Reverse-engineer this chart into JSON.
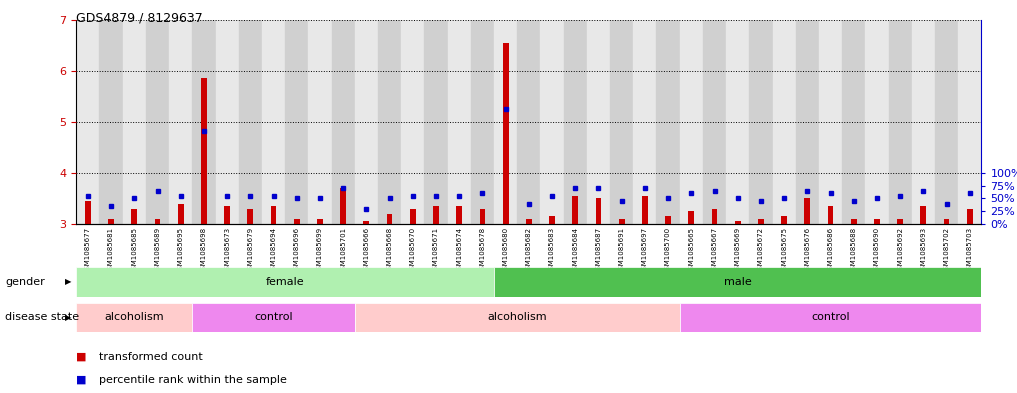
{
  "title": "GDS4879 / 8129637",
  "samples": [
    "GSM1085677",
    "GSM1085681",
    "GSM1085685",
    "GSM1085689",
    "GSM1085695",
    "GSM1085698",
    "GSM1085673",
    "GSM1085679",
    "GSM1085694",
    "GSM1085696",
    "GSM1085699",
    "GSM1085701",
    "GSM1085666",
    "GSM1085668",
    "GSM1085670",
    "GSM1085671",
    "GSM1085674",
    "GSM1085678",
    "GSM1085680",
    "GSM1085682",
    "GSM1085683",
    "GSM1085684",
    "GSM1085687",
    "GSM1085691",
    "GSM1085697",
    "GSM1085700",
    "GSM1085665",
    "GSM1085667",
    "GSM1085669",
    "GSM1085672",
    "GSM1085675",
    "GSM1085676",
    "GSM1085686",
    "GSM1085688",
    "GSM1085690",
    "GSM1085692",
    "GSM1085693",
    "GSM1085702",
    "GSM1085703"
  ],
  "red_values": [
    3.45,
    3.1,
    3.3,
    3.1,
    3.4,
    5.85,
    3.35,
    3.3,
    3.35,
    3.1,
    3.1,
    3.7,
    3.05,
    3.2,
    3.3,
    3.35,
    3.35,
    3.3,
    6.55,
    3.1,
    3.15,
    3.55,
    3.5,
    3.1,
    3.55,
    3.15,
    3.25,
    3.3,
    3.05,
    3.1,
    3.15,
    3.5,
    3.35,
    3.1,
    3.1,
    3.1,
    3.35,
    3.1,
    3.3
  ],
  "blue_values": [
    3.55,
    3.35,
    3.5,
    3.65,
    3.55,
    4.82,
    3.55,
    3.55,
    3.55,
    3.5,
    3.5,
    3.7,
    3.3,
    3.5,
    3.55,
    3.55,
    3.55,
    3.6,
    5.25,
    3.4,
    3.55,
    3.7,
    3.7,
    3.45,
    3.7,
    3.5,
    3.6,
    3.65,
    3.5,
    3.45,
    3.5,
    3.65,
    3.6,
    3.45,
    3.5,
    3.55,
    3.65,
    3.4,
    3.6
  ],
  "ylim": [
    3.0,
    7.0
  ],
  "yticks": [
    3,
    4,
    5,
    6,
    7
  ],
  "right_yticks_vals": [
    3.0,
    3.25,
    3.5,
    3.75,
    4.0
  ],
  "right_ylabels": [
    "0%",
    "25%",
    "50%",
    "75%",
    "100%"
  ],
  "gender_groups": [
    {
      "label": "female",
      "start": 0,
      "end": 17,
      "color": "#b0f0b0"
    },
    {
      "label": "male",
      "start": 18,
      "end": 38,
      "color": "#50c050"
    }
  ],
  "disease_groups": [
    {
      "label": "alcoholism",
      "start": 0,
      "end": 4,
      "color": "#ffcccc"
    },
    {
      "label": "control",
      "start": 5,
      "end": 11,
      "color": "#ee88ee"
    },
    {
      "label": "alcoholism",
      "start": 12,
      "end": 25,
      "color": "#ffcccc"
    },
    {
      "label": "control",
      "start": 26,
      "end": 38,
      "color": "#ee88ee"
    }
  ],
  "bar_color_red": "#CC0000",
  "bar_color_blue": "#0000CC",
  "bg_color": "#FFFFFF",
  "col_bg_even": "#E8E8E8",
  "col_bg_odd": "#D0D0D0",
  "axis_label_color_left": "#CC0000",
  "axis_label_color_right": "#0000CC",
  "legend_labels": [
    "transformed count",
    "percentile rank within the sample"
  ],
  "gender_label": "gender",
  "disease_label": "disease state"
}
